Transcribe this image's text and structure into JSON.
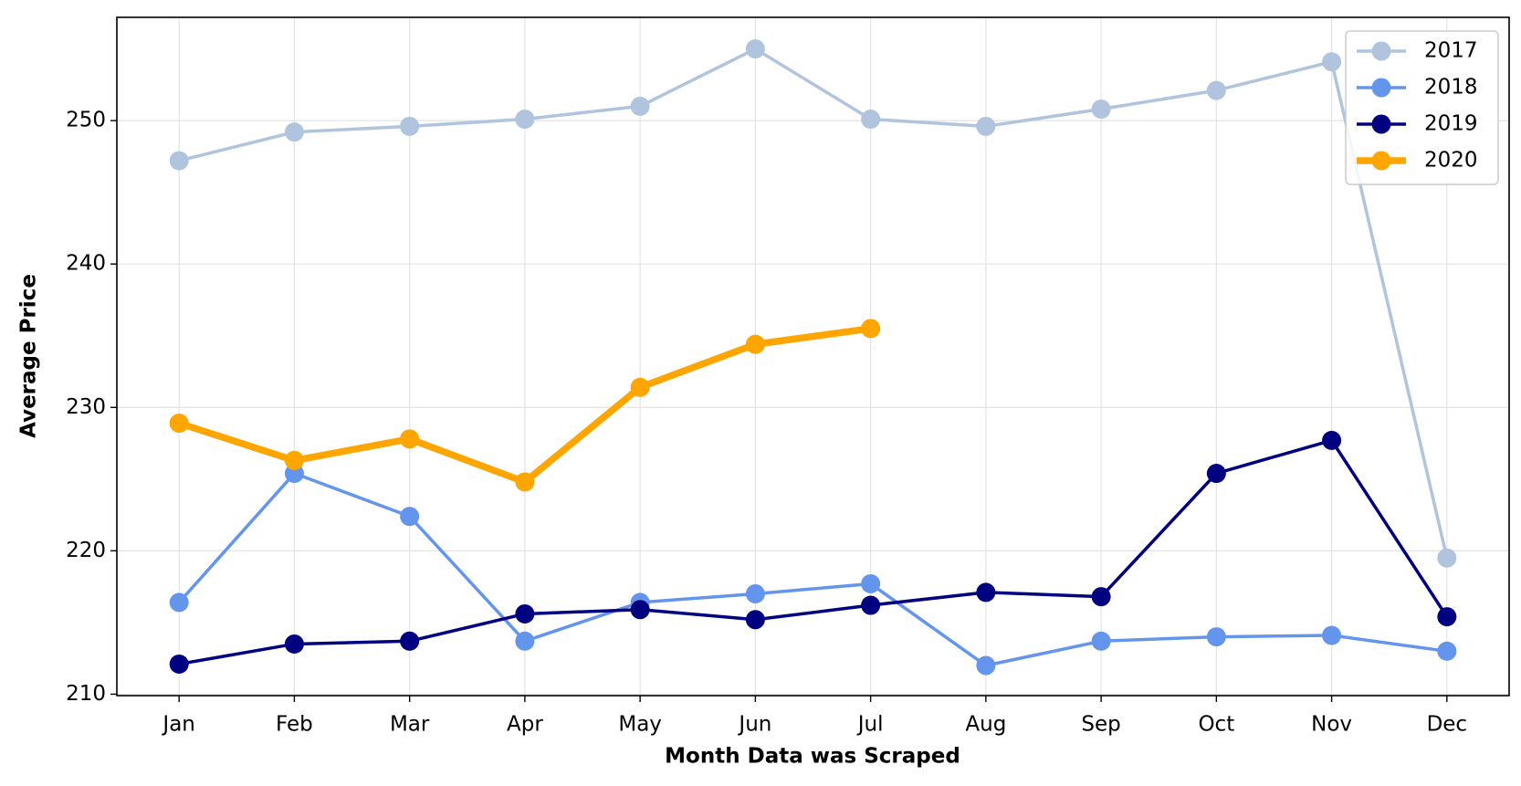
{
  "chart_data": {
    "type": "line",
    "xlabel": "Month Data was Scraped",
    "ylabel": "Average Price",
    "categories": [
      "Jan",
      "Feb",
      "Mar",
      "Apr",
      "May",
      "Jun",
      "Jul",
      "Aug",
      "Sep",
      "Oct",
      "Nov",
      "Dec"
    ],
    "series": [
      {
        "name": "2017",
        "color": "#b0c4de",
        "linewidth": 3.5,
        "values": [
          247.2,
          249.2,
          249.6,
          250.1,
          251.0,
          255.0,
          250.1,
          249.6,
          250.8,
          252.1,
          254.1,
          219.5
        ]
      },
      {
        "name": "2018",
        "color": "#6495ed",
        "linewidth": 3.5,
        "values": [
          216.4,
          225.4,
          222.4,
          213.7,
          216.4,
          217.0,
          217.7,
          212.0,
          213.7,
          214.0,
          214.1,
          213.0
        ]
      },
      {
        "name": "2019",
        "color": "#000080",
        "linewidth": 3.5,
        "values": [
          212.1,
          213.5,
          213.7,
          215.6,
          215.9,
          215.2,
          216.2,
          217.1,
          216.8,
          225.4,
          227.7,
          215.4
        ]
      },
      {
        "name": "2020",
        "color": "#ffa500",
        "linewidth": 7.5,
        "values": [
          228.9,
          226.3,
          227.8,
          224.8,
          231.4,
          234.4,
          235.5,
          null,
          null,
          null,
          null,
          null
        ]
      }
    ],
    "ylim": [
      209.9,
      257.2
    ],
    "yticks": [
      210,
      220,
      230,
      240,
      250
    ],
    "grid": true,
    "legend": "upper right"
  }
}
